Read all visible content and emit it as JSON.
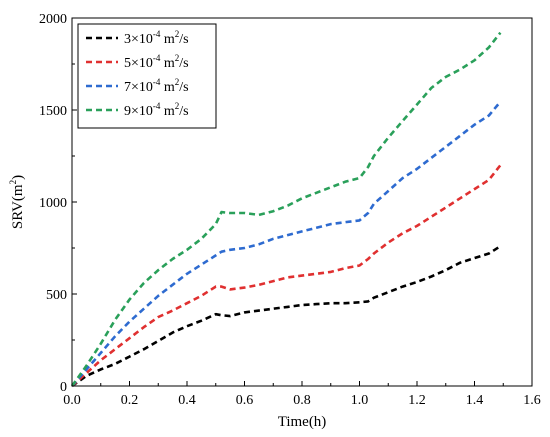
{
  "chart_data": {
    "type": "line",
    "title": "",
    "xlabel": "Time(h)",
    "ylabel_base": "SRV(m",
    "ylabel_sup": "2",
    "ylabel_close": ")",
    "xlim": [
      0.0,
      1.6
    ],
    "ylim": [
      0,
      2000
    ],
    "xticks": [
      0.0,
      0.2,
      0.4,
      0.6,
      0.8,
      1.0,
      1.2,
      1.4,
      1.6
    ],
    "xtick_labels": [
      "0.0",
      "0.2",
      "0.4",
      "0.6",
      "0.8",
      "1.0",
      "1.2",
      "1.4",
      "1.6"
    ],
    "yticks": [
      0,
      500,
      1000,
      1500,
      2000
    ],
    "ytick_labels": [
      "0",
      "500",
      "1000",
      "1500",
      "2000"
    ],
    "grid": false,
    "legend_position": "top-left",
    "series": [
      {
        "name": "3×10-4 m2/s",
        "label_parts": {
          "mant": "3×10",
          "exp": "-4",
          "unit": " m",
          "unit_exp": "2",
          "tail": "/s"
        },
        "color": "#000000",
        "x": [
          0.0,
          0.05,
          0.1,
          0.15,
          0.2,
          0.25,
          0.3,
          0.35,
          0.4,
          0.45,
          0.5,
          0.52,
          0.55,
          0.6,
          0.65,
          0.7,
          0.75,
          0.8,
          0.85,
          0.9,
          0.95,
          1.0,
          1.03,
          1.05,
          1.1,
          1.15,
          1.2,
          1.25,
          1.3,
          1.35,
          1.4,
          1.45,
          1.49
        ],
        "y": [
          0,
          55,
          90,
          120,
          160,
          200,
          245,
          290,
          325,
          355,
          390,
          385,
          380,
          400,
          410,
          420,
          430,
          440,
          445,
          450,
          450,
          455,
          460,
          480,
          510,
          540,
          565,
          595,
          630,
          670,
          695,
          720,
          760
        ]
      },
      {
        "name": "5×10-4 m2/s",
        "label_parts": {
          "mant": "5×10",
          "exp": "-4",
          "unit": " m",
          "unit_exp": "2",
          "tail": "/s"
        },
        "color": "#e03030",
        "x": [
          0.0,
          0.05,
          0.1,
          0.15,
          0.2,
          0.25,
          0.3,
          0.35,
          0.4,
          0.45,
          0.5,
          0.52,
          0.55,
          0.6,
          0.65,
          0.7,
          0.75,
          0.8,
          0.85,
          0.9,
          0.95,
          1.0,
          1.03,
          1.05,
          1.1,
          1.15,
          1.2,
          1.25,
          1.3,
          1.35,
          1.4,
          1.45,
          1.49
        ],
        "y": [
          0,
          70,
          140,
          200,
          260,
          320,
          375,
          410,
          450,
          490,
          540,
          540,
          525,
          535,
          550,
          570,
          590,
          600,
          610,
          620,
          640,
          655,
          690,
          720,
          780,
          830,
          870,
          920,
          970,
          1020,
          1070,
          1120,
          1200
        ]
      },
      {
        "name": "7×10-4 m2/s",
        "label_parts": {
          "mant": "7×10",
          "exp": "-4",
          "unit": " m",
          "unit_exp": "2",
          "tail": "/s"
        },
        "color": "#2e6bd0",
        "x": [
          0.0,
          0.05,
          0.1,
          0.15,
          0.2,
          0.25,
          0.3,
          0.35,
          0.4,
          0.45,
          0.5,
          0.52,
          0.55,
          0.6,
          0.65,
          0.7,
          0.75,
          0.8,
          0.85,
          0.9,
          0.95,
          1.0,
          1.03,
          1.05,
          1.1,
          1.15,
          1.2,
          1.25,
          1.3,
          1.35,
          1.4,
          1.45,
          1.49
        ],
        "y": [
          0,
          90,
          180,
          270,
          350,
          420,
          490,
          550,
          610,
          660,
          710,
          730,
          740,
          750,
          770,
          800,
          820,
          840,
          860,
          880,
          890,
          900,
          940,
          990,
          1060,
          1130,
          1180,
          1240,
          1300,
          1360,
          1420,
          1470,
          1545
        ]
      },
      {
        "name": "9×10-4 m2/s",
        "label_parts": {
          "mant": "9×10",
          "exp": "-4",
          "unit": " m",
          "unit_exp": "2",
          "tail": "/s"
        },
        "color": "#2aa05a",
        "x": [
          0.0,
          0.05,
          0.1,
          0.15,
          0.2,
          0.25,
          0.3,
          0.35,
          0.4,
          0.45,
          0.5,
          0.52,
          0.55,
          0.6,
          0.65,
          0.7,
          0.75,
          0.8,
          0.85,
          0.9,
          0.95,
          1.0,
          1.03,
          1.05,
          1.1,
          1.15,
          1.2,
          1.25,
          1.3,
          1.35,
          1.4,
          1.45,
          1.49
        ],
        "y": [
          0,
          110,
          230,
          360,
          470,
          560,
          630,
          690,
          740,
          800,
          880,
          945,
          940,
          940,
          930,
          950,
          980,
          1020,
          1050,
          1080,
          1110,
          1130,
          1190,
          1250,
          1350,
          1440,
          1530,
          1620,
          1680,
          1720,
          1770,
          1840,
          1920
        ]
      }
    ]
  }
}
